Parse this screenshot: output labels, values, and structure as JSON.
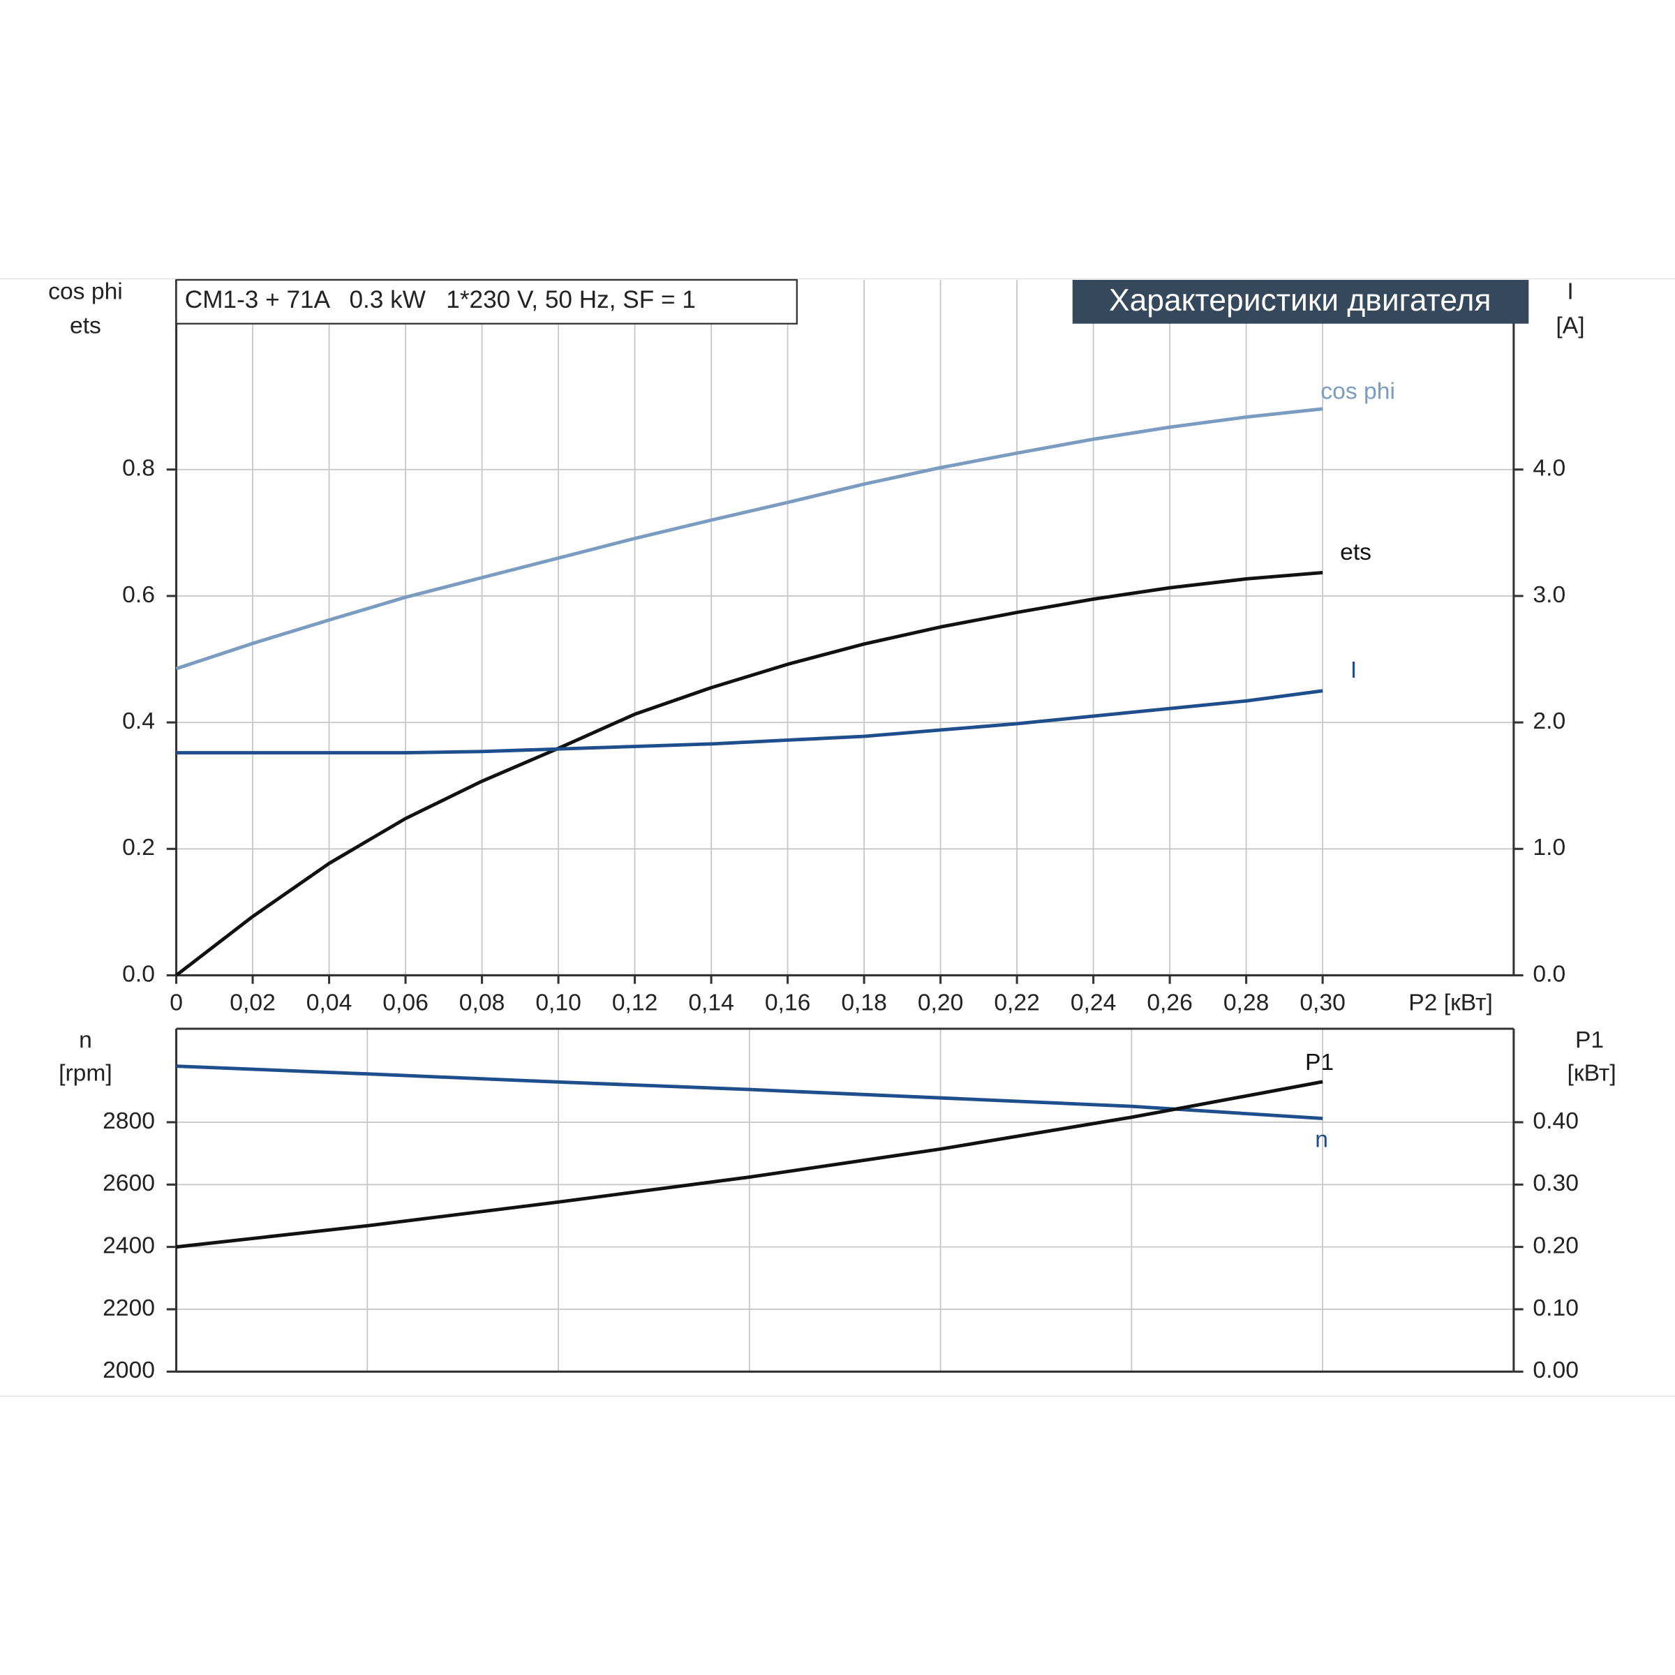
{
  "chart_data": [
    {
      "type": "line",
      "title": "Характеристики двигателя",
      "annotation": "CM1-3 + 71A   0.3 kW   1*230 V, 50 Hz, SF = 1",
      "x_label": "P2 [кВт]",
      "y_label": [
        "cos phi",
        "ets"
      ],
      "y2_label": [
        "I",
        "[A]"
      ],
      "xlim": [
        0,
        0.35
      ],
      "xticks": [
        0,
        {
          "value": 0.02,
          "label": "0,02"
        },
        {
          "value": 0.04,
          "label": "0,04"
        },
        {
          "value": 0.06,
          "label": "0,06"
        },
        {
          "value": 0.08,
          "label": "0,08"
        },
        {
          "value": 0.1,
          "label": "0,10"
        },
        {
          "value": 0.12,
          "label": "0,12"
        },
        {
          "value": 0.14,
          "label": "0,14"
        },
        {
          "value": 0.16,
          "label": "0,16"
        },
        {
          "value": 0.18,
          "label": "0,18"
        },
        {
          "value": 0.2,
          "label": "0,20"
        },
        {
          "value": 0.22,
          "label": "0,22"
        },
        {
          "value": 0.24,
          "label": "0,24"
        },
        {
          "value": 0.26,
          "label": "0,26"
        },
        {
          "value": 0.28,
          "label": "0,28"
        },
        {
          "value": 0.3,
          "label": "0,30"
        }
      ],
      "ylim": [
        0,
        1.1
      ],
      "yticks": [
        {
          "value": 0,
          "label": "0.0"
        },
        0.2,
        0.4,
        0.6,
        0.8
      ],
      "y2lim": [
        0,
        5.5
      ],
      "y2ticks": [
        {
          "value": 0,
          "label": "0.0"
        },
        {
          "value": 1,
          "label": "1.0"
        },
        {
          "value": 2,
          "label": "2.0"
        },
        {
          "value": 3,
          "label": "3.0"
        },
        {
          "value": 4,
          "label": "4.0"
        }
      ],
      "grid": true,
      "show_xtick_labels": true,
      "x": [
        0,
        0.02,
        0.04,
        0.06,
        0.08,
        0.1,
        0.12,
        0.14,
        0.16,
        0.18,
        0.2,
        0.22,
        0.24,
        0.26,
        0.28,
        0.3
      ],
      "series": [
        {
          "name": "cos phi",
          "color": "#7a9cc0",
          "values": [
            0.485,
            0.525,
            0.562,
            0.598,
            0.629,
            0.66,
            0.691,
            0.72,
            0.748,
            0.777,
            0.803,
            0.826,
            0.848,
            0.867,
            0.883,
            0.896
          ]
        },
        {
          "name": "ets",
          "color": "#111111",
          "values": [
            0,
            0.093,
            0.177,
            0.248,
            0.307,
            0.359,
            0.413,
            0.455,
            0.492,
            0.524,
            0.551,
            0.574,
            0.595,
            0.613,
            0.627,
            0.637
          ]
        },
        {
          "name": "I",
          "color": "#1f4e8c",
          "axis": "y2",
          "values": [
            1.76,
            1.76,
            1.76,
            1.76,
            1.77,
            1.79,
            1.81,
            1.83,
            1.86,
            1.89,
            1.94,
            1.99,
            2.05,
            2.11,
            2.17,
            2.25
          ]
        }
      ]
    },
    {
      "type": "line",
      "y_label": [
        "n",
        "[rpm]"
      ],
      "y2_label": [
        "P1",
        "[кВт]"
      ],
      "xlim": [
        0,
        0.35
      ],
      "xticks": [
        0,
        0.05,
        0.1,
        0.15,
        0.2,
        0.25,
        0.3
      ],
      "ylim": [
        2000,
        3100
      ],
      "yticks": [
        2000,
        2200,
        2400,
        2600,
        2800
      ],
      "y2lim": [
        0,
        0.55
      ],
      "y2ticks": [
        {
          "value": 0,
          "label": "0.00"
        },
        {
          "value": 0.1,
          "label": "0.10"
        },
        {
          "value": 0.2,
          "label": "0.20"
        },
        {
          "value": 0.3,
          "label": "0.30"
        },
        {
          "value": 0.4,
          "label": "0.40"
        }
      ],
      "grid": true,
      "show_xtick_labels": false,
      "x": [
        0,
        0.05,
        0.1,
        0.15,
        0.2,
        0.25,
        0.3
      ],
      "series": [
        {
          "name": "n",
          "color": "#1f4e8c",
          "values": [
            2980,
            2955,
            2929,
            2905,
            2878,
            2851,
            2812
          ]
        },
        {
          "name": "P1",
          "color": "#111111",
          "axis": "y2",
          "values": [
            0.2,
            0.234,
            0.272,
            0.312,
            0.357,
            0.408,
            0.465
          ]
        }
      ]
    }
  ]
}
